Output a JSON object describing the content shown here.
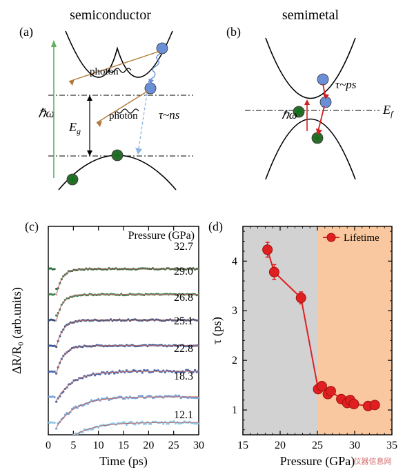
{
  "panel_a": {
    "label": "(a)",
    "title": "semiconductor",
    "band_color": "#000000",
    "photon_label": "photon",
    "Eg_label": "E",
    "Eg_sub": "g",
    "hbar_omega": "ℏω",
    "tau_label": "τ~ns",
    "electron_color": "#6a8fd6",
    "hole_color": "#2b6b2b",
    "photon_line_color": "#b07a3a",
    "emission_arrow_color": "#5fb05f",
    "dash_color": "#000000"
  },
  "panel_b": {
    "label": "(b)",
    "title": "semimetal",
    "band_color": "#000000",
    "tau_label": "τ~ps",
    "hbar_omega": "ℏω",
    "Ef_label": "E",
    "Ef_sub": "f",
    "electron_color": "#6a8fd6",
    "hole_color": "#2b6b2b",
    "scatter_arrow_color": "#d02020",
    "dash_color": "#000000"
  },
  "panel_c": {
    "label": "(c)",
    "title": "Pressure (GPa)",
    "xlabel": "Time (ps)",
    "ylabel": "ΔR/R₀ (arb.units)",
    "xlim": [
      0,
      30
    ],
    "xticks": [
      0,
      5,
      10,
      15,
      20,
      25,
      30
    ],
    "frame_color": "#000000",
    "fit_color": "#b86a6a",
    "label_fontsize": 18,
    "tick_fontsize": 16,
    "pressure_label_fontsize": 16,
    "traces": [
      {
        "p": "32.7",
        "color": "#2f6b3f",
        "baseline": 6,
        "amp": -1.05,
        "tau": 1.1
      },
      {
        "p": "29.0",
        "color": "#3e8050",
        "baseline": 5,
        "amp": -1.05,
        "tau": 1.15
      },
      {
        "p": "26.8",
        "color": "#2f4f7f",
        "baseline": 4,
        "amp": -1.05,
        "tau": 1.3
      },
      {
        "p": "25.1",
        "color": "#3a5a9a",
        "baseline": 3,
        "amp": -1.1,
        "tau": 1.4
      },
      {
        "p": "22.8",
        "color": "#4a6ab0",
        "baseline": 2,
        "amp": -1.15,
        "tau": 3.3
      },
      {
        "p": "18.3",
        "color": "#7aa6d9",
        "baseline": 1,
        "amp": -1.2,
        "tau": 3.8
      },
      {
        "p": "12.1",
        "color": "#8ec8e8",
        "baseline": 0,
        "amp": -1.2,
        "tau": 4.2
      }
    ]
  },
  "panel_d": {
    "label": "(d)",
    "xlabel": "Pressure (GPa)",
    "ylabel": "τ (ps)",
    "xlim": [
      15,
      35
    ],
    "ylim": [
      0.5,
      4.7
    ],
    "xticks": [
      15,
      20,
      25,
      30,
      35
    ],
    "yticks": [
      1,
      2,
      3,
      4
    ],
    "region1_color": "#d2d2d2",
    "region2_color": "#f9c8a0",
    "region_split": 25,
    "line_color": "#e02020",
    "marker_face": "#e02020",
    "marker_edge": "#a01010",
    "marker_size": 7,
    "errorbar_color": "#e02020",
    "legend_label": "Lifetime",
    "label_fontsize": 18,
    "tick_fontsize": 16,
    "points": [
      {
        "x": 18.3,
        "y": 4.23,
        "ey": 0.15
      },
      {
        "x": 19.2,
        "y": 3.78,
        "ey": 0.15
      },
      {
        "x": 22.8,
        "y": 3.26,
        "ey": 0.12
      },
      {
        "x": 25.1,
        "y": 1.42,
        "ey": 0.06
      },
      {
        "x": 25.6,
        "y": 1.48,
        "ey": 0.06
      },
      {
        "x": 26.4,
        "y": 1.32,
        "ey": 0.05
      },
      {
        "x": 26.8,
        "y": 1.38,
        "ey": 0.05
      },
      {
        "x": 28.2,
        "y": 1.22,
        "ey": 0.05
      },
      {
        "x": 29.0,
        "y": 1.14,
        "ey": 0.05
      },
      {
        "x": 29.4,
        "y": 1.2,
        "ey": 0.05
      },
      {
        "x": 29.9,
        "y": 1.12,
        "ey": 0.05
      },
      {
        "x": 31.8,
        "y": 1.08,
        "ey": 0.05
      },
      {
        "x": 32.7,
        "y": 1.1,
        "ey": 0.05
      }
    ]
  },
  "watermark": "仪器信息网"
}
